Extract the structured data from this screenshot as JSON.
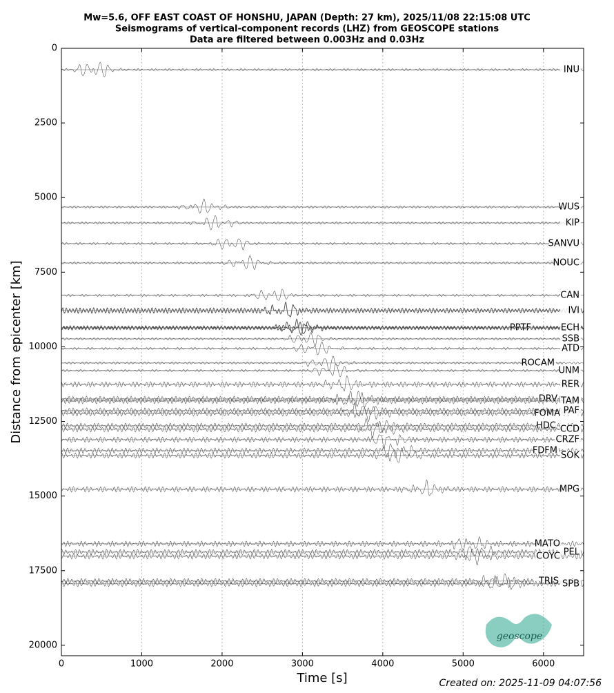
{
  "chart_data": {
    "type": "seismogram",
    "title": [
      "Mw=5.6, OFF EAST COAST OF HONSHU, JAPAN (Depth: 27 km), 2025/11/08 22:15:08 UTC",
      "Seismograms of vertical-component records (LHZ) from GEOSCOPE stations",
      "Data are filtered between 0.003Hz and 0.03Hz"
    ],
    "xlabel": "Time [s]",
    "ylabel": "Distance from epicenter [km]",
    "xlim": [
      0,
      6500
    ],
    "ylim": [
      20350,
      0
    ],
    "xticks": [
      0,
      1000,
      2000,
      3000,
      4000,
      5000,
      6000
    ],
    "yticks": [
      0,
      2500,
      5000,
      7500,
      10000,
      12500,
      15000,
      17500,
      20000
    ],
    "grid": true,
    "stations": [
      "INU",
      "WUS",
      "KIP",
      "SANVU",
      "NOUC",
      "CAN",
      "IVI",
      "PPTF",
      "ECH",
      "SSB",
      "ATD",
      "ROCAM",
      "UNM",
      "RER",
      "DRV",
      "TAM",
      "FOMA",
      "PAF",
      "HDC",
      "CCD",
      "CRZF",
      "FDFM",
      "SOK",
      "MPG",
      "MATO",
      "PEL",
      "COYC",
      "TRIS",
      "SPB"
    ],
    "distances": [
      717,
      5318,
      5850,
      6543,
      7191,
      8277,
      8786,
      9364,
      9364,
      9734,
      10058,
      10543,
      10798,
      11260,
      11746,
      11815,
      12231,
      12139,
      12647,
      12763,
      13110,
      13480,
      13642,
      14775,
      16601,
      16879,
      17017,
      17850,
      17942
    ],
    "color": "#555555",
    "footer": "Created on: 2025-11-09 04:07:56",
    "logo": "geoscope"
  }
}
